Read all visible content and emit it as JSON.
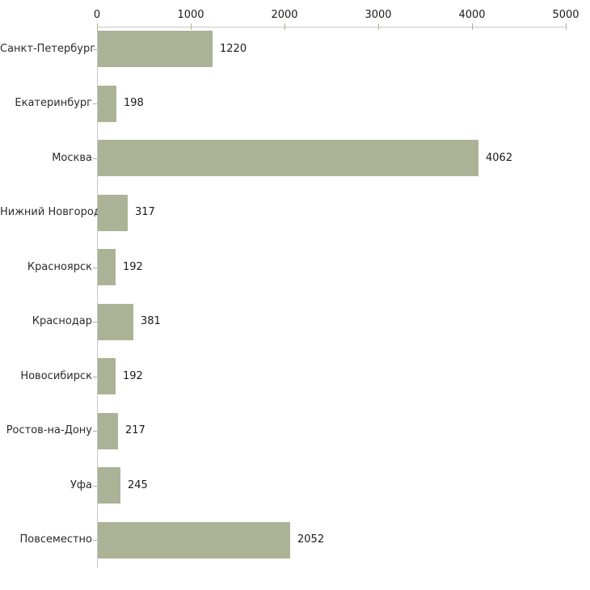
{
  "chart_data": {
    "type": "bar",
    "orientation": "horizontal",
    "title": "",
    "xlabel": "",
    "ylabel": "",
    "categories": [
      "Санкт-Петербург",
      "Екатеринбург",
      "Москва",
      "Нижний Новгород",
      "Красноярск",
      "Краснодар",
      "Новосибирск",
      "Ростов-на-Дону",
      "Уфа",
      "Повсеместно"
    ],
    "values": [
      1220,
      198,
      4062,
      317,
      192,
      381,
      192,
      217,
      245,
      2052
    ],
    "x_ticks": [
      0,
      1000,
      2000,
      3000,
      4000,
      5000
    ],
    "xlim": [
      0,
      5000
    ],
    "grid": false,
    "legend": false,
    "value_labels_shown": true,
    "colors": {
      "bar_fill": "#ABB296",
      "axis_line": "#C9C9C9",
      "tick_mark": "#B3B183",
      "category_label_text": "#2B2B2B",
      "value_label_text": "#1A1A1A",
      "axis_tick_label_text": "#1A1A1A",
      "background": "#FFFFFF"
    }
  }
}
